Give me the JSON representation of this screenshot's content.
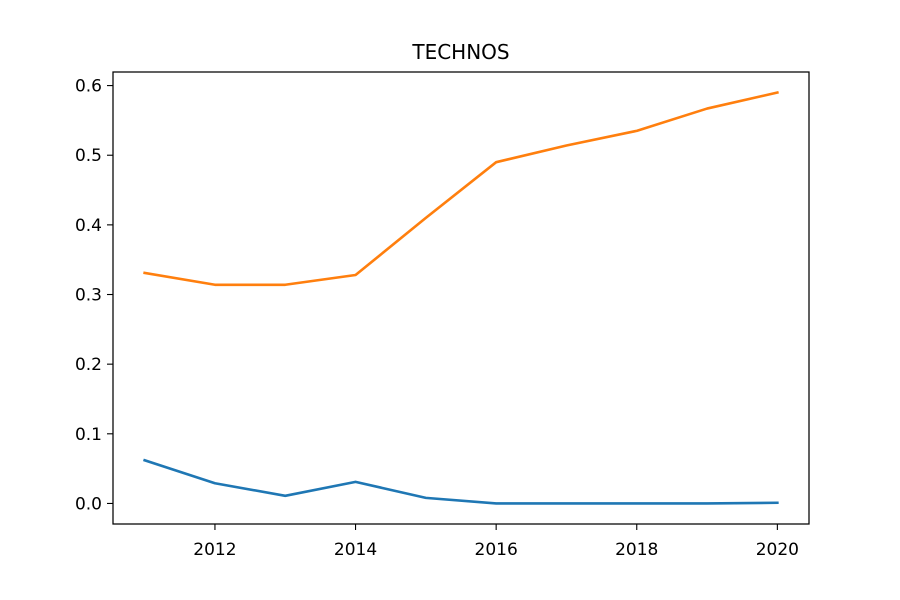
{
  "chart_data": {
    "type": "line",
    "title": "TECHNOS",
    "xlabel": "",
    "ylabel": "",
    "x": [
      2011,
      2012,
      2013,
      2014,
      2015,
      2016,
      2017,
      2018,
      2019,
      2020
    ],
    "series": [
      {
        "values": [
          0.062,
          0.029,
          0.011,
          0.031,
          0.008,
          0.0,
          0.0,
          0.0,
          0.0,
          0.001
        ],
        "color": "#1f77b4"
      },
      {
        "values": [
          0.331,
          0.314,
          0.314,
          0.328,
          0.41,
          0.49,
          0.514,
          0.535,
          0.567,
          0.59
        ],
        "color": "#ff7f0e"
      }
    ],
    "xticks": [
      "2012",
      "2014",
      "2016",
      "2018",
      "2020"
    ],
    "yticks": [
      "0.0",
      "0.1",
      "0.2",
      "0.3",
      "0.4",
      "0.5",
      "0.6"
    ],
    "xlim": [
      2010.55,
      2020.45
    ],
    "ylim": [
      -0.0295,
      0.6195
    ],
    "grid": false,
    "legend": "none"
  }
}
